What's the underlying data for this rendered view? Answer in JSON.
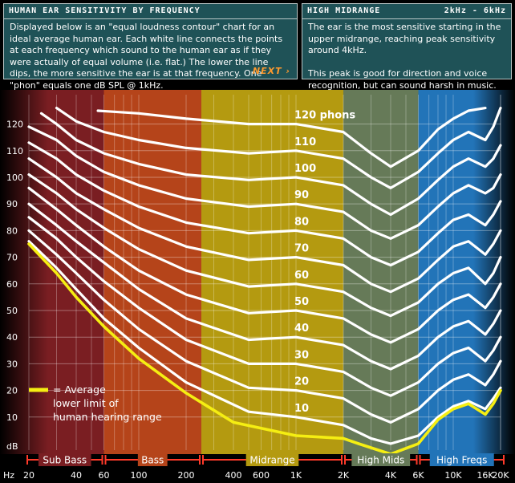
{
  "left_panel": {
    "title": "HUMAN EAR SENSITIVITY BY FREQUENCY",
    "body": "Displayed below is an \"equal loudness contour\" chart for an ideal average human ear. Each white line connects the points at each frequency which sound to the human ear as if they were actually of equal volume (i.e. flat.) The lower the line dips, the more sensitive the ear is at that frequency. One \"phon\" equals one dB SPL @ 1kHz.",
    "next_label": "NEXT ›"
  },
  "right_panel": {
    "title": "HIGH MIDRANGE",
    "range": "2kHz - 6kHz",
    "body": "The ear is the most sensitive starting in the upper midrange, reaching peak sensitivity around 4kHz.\n\nThis peak is good for direction and voice recognition, but can sound harsh in music."
  },
  "chart_data": {
    "type": "line",
    "xscale": "log",
    "xlim": [
      20,
      20000
    ],
    "ylim": [
      0,
      128
    ],
    "xlabel": "Hz",
    "ylabel": "dB",
    "yticks": [
      10,
      20,
      30,
      40,
      50,
      60,
      70,
      80,
      90,
      100,
      110,
      120
    ],
    "xticks": [
      {
        "v": 20,
        "label": "20"
      },
      {
        "v": 40,
        "label": "40"
      },
      {
        "v": 60,
        "label": "60"
      },
      {
        "v": 100,
        "label": "100"
      },
      {
        "v": 200,
        "label": "200"
      },
      {
        "v": 400,
        "label": "400"
      },
      {
        "v": 600,
        "label": "600"
      },
      {
        "v": 1000,
        "label": "1K"
      },
      {
        "v": 2000,
        "label": "2K"
      },
      {
        "v": 4000,
        "label": "4K"
      },
      {
        "v": 6000,
        "label": "6K"
      },
      {
        "v": 10000,
        "label": "10K"
      },
      {
        "v": 16000,
        "label": "16K"
      },
      {
        "v": 20000,
        "label": "20K"
      }
    ],
    "bands": [
      {
        "name": "Sub Bass",
        "from": 20,
        "to": 60,
        "color": "#7a1e22"
      },
      {
        "name": "Bass",
        "from": 60,
        "to": 250,
        "color": "#b5441a"
      },
      {
        "name": "Midrange",
        "from": 250,
        "to": 2000,
        "color": "#b49a10"
      },
      {
        "name": "High Mids",
        "from": 2000,
        "to": 6000,
        "color": "#667a58"
      },
      {
        "name": "High Freqs",
        "from": 6000,
        "to": 20000,
        "color": "#2274b8"
      }
    ],
    "series": [
      {
        "name": "120 phons",
        "points": [
          [
            55,
            125
          ],
          [
            100,
            124
          ],
          [
            200,
            122
          ],
          [
            500,
            120
          ],
          [
            1000,
            120
          ],
          [
            2000,
            117
          ],
          [
            3000,
            109
          ],
          [
            4000,
            104
          ],
          [
            6000,
            110
          ],
          [
            8000,
            118
          ],
          [
            10000,
            122
          ],
          [
            12500,
            125
          ],
          [
            16000,
            126
          ]
        ]
      },
      {
        "name": "110",
        "points": [
          [
            30,
            126
          ],
          [
            40,
            121
          ],
          [
            60,
            117
          ],
          [
            100,
            114
          ],
          [
            200,
            111
          ],
          [
            500,
            109
          ],
          [
            1000,
            110
          ],
          [
            2000,
            107
          ],
          [
            3000,
            100
          ],
          [
            4000,
            96
          ],
          [
            6000,
            102
          ],
          [
            8000,
            109
          ],
          [
            10000,
            114
          ],
          [
            12500,
            117
          ],
          [
            16000,
            114
          ],
          [
            18000,
            119
          ],
          [
            20000,
            126
          ]
        ]
      },
      {
        "name": "100",
        "points": [
          [
            24,
            124
          ],
          [
            30,
            120
          ],
          [
            40,
            114
          ],
          [
            60,
            109
          ],
          [
            100,
            105
          ],
          [
            200,
            101
          ],
          [
            500,
            99
          ],
          [
            1000,
            100
          ],
          [
            2000,
            97
          ],
          [
            3000,
            90
          ],
          [
            4000,
            86
          ],
          [
            6000,
            92
          ],
          [
            8000,
            99
          ],
          [
            10000,
            104
          ],
          [
            12500,
            107
          ],
          [
            16000,
            104
          ],
          [
            18000,
            107
          ],
          [
            20000,
            112
          ]
        ]
      },
      {
        "name": "90",
        "points": [
          [
            20,
            119
          ],
          [
            30,
            114
          ],
          [
            40,
            108
          ],
          [
            60,
            102
          ],
          [
            100,
            97
          ],
          [
            200,
            92
          ],
          [
            500,
            89
          ],
          [
            1000,
            90
          ],
          [
            2000,
            87
          ],
          [
            3000,
            80
          ],
          [
            4000,
            77
          ],
          [
            6000,
            82
          ],
          [
            8000,
            89
          ],
          [
            10000,
            94
          ],
          [
            12500,
            97
          ],
          [
            16000,
            94
          ],
          [
            18000,
            96
          ],
          [
            20000,
            101
          ]
        ]
      },
      {
        "name": "80",
        "points": [
          [
            20,
            113
          ],
          [
            30,
            107
          ],
          [
            40,
            101
          ],
          [
            60,
            95
          ],
          [
            100,
            89
          ],
          [
            200,
            83
          ],
          [
            500,
            79
          ],
          [
            1000,
            80
          ],
          [
            2000,
            77
          ],
          [
            3000,
            70
          ],
          [
            4000,
            67
          ],
          [
            6000,
            72
          ],
          [
            8000,
            79
          ],
          [
            10000,
            84
          ],
          [
            12500,
            86
          ],
          [
            16000,
            82
          ],
          [
            18000,
            86
          ],
          [
            20000,
            91
          ]
        ]
      },
      {
        "name": "70",
        "points": [
          [
            20,
            107
          ],
          [
            30,
            100
          ],
          [
            40,
            94
          ],
          [
            60,
            88
          ],
          [
            100,
            81
          ],
          [
            200,
            74
          ],
          [
            500,
            69
          ],
          [
            1000,
            70
          ],
          [
            2000,
            67
          ],
          [
            3000,
            60
          ],
          [
            4000,
            57
          ],
          [
            6000,
            62
          ],
          [
            8000,
            69
          ],
          [
            10000,
            74
          ],
          [
            12500,
            76
          ],
          [
            16000,
            71
          ],
          [
            18000,
            75
          ],
          [
            20000,
            80
          ]
        ]
      },
      {
        "name": "60",
        "points": [
          [
            20,
            101
          ],
          [
            30,
            94
          ],
          [
            40,
            88
          ],
          [
            60,
            81
          ],
          [
            100,
            73
          ],
          [
            200,
            65
          ],
          [
            500,
            59
          ],
          [
            1000,
            60
          ],
          [
            2000,
            57
          ],
          [
            3000,
            51
          ],
          [
            4000,
            48
          ],
          [
            6000,
            53
          ],
          [
            8000,
            60
          ],
          [
            10000,
            64
          ],
          [
            12500,
            66
          ],
          [
            16000,
            60
          ],
          [
            18000,
            64
          ],
          [
            20000,
            70
          ]
        ]
      },
      {
        "name": "50",
        "points": [
          [
            20,
            96
          ],
          [
            30,
            88
          ],
          [
            40,
            82
          ],
          [
            60,
            74
          ],
          [
            100,
            65
          ],
          [
            200,
            56
          ],
          [
            500,
            49
          ],
          [
            1000,
            50
          ],
          [
            2000,
            47
          ],
          [
            3000,
            41
          ],
          [
            4000,
            38
          ],
          [
            6000,
            43
          ],
          [
            8000,
            50
          ],
          [
            10000,
            54
          ],
          [
            12500,
            56
          ],
          [
            16000,
            51
          ],
          [
            18000,
            55
          ],
          [
            20000,
            60
          ]
        ]
      },
      {
        "name": "40",
        "points": [
          [
            20,
            90
          ],
          [
            30,
            82
          ],
          [
            40,
            76
          ],
          [
            60,
            68
          ],
          [
            100,
            58
          ],
          [
            200,
            47
          ],
          [
            500,
            39
          ],
          [
            1000,
            40
          ],
          [
            2000,
            37
          ],
          [
            3000,
            31
          ],
          [
            4000,
            28
          ],
          [
            6000,
            33
          ],
          [
            8000,
            40
          ],
          [
            10000,
            44
          ],
          [
            12500,
            46
          ],
          [
            16000,
            41
          ],
          [
            18000,
            45
          ],
          [
            20000,
            50
          ]
        ]
      },
      {
        "name": "30",
        "points": [
          [
            20,
            85
          ],
          [
            30,
            77
          ],
          [
            40,
            70
          ],
          [
            60,
            61
          ],
          [
            100,
            51
          ],
          [
            200,
            39
          ],
          [
            500,
            30
          ],
          [
            1000,
            30
          ],
          [
            2000,
            27
          ],
          [
            3000,
            21
          ],
          [
            4000,
            18
          ],
          [
            6000,
            23
          ],
          [
            8000,
            30
          ],
          [
            10000,
            34
          ],
          [
            12500,
            36
          ],
          [
            16000,
            31
          ],
          [
            18000,
            35
          ],
          [
            20000,
            40
          ]
        ]
      },
      {
        "name": "20",
        "points": [
          [
            20,
            80
          ],
          [
            30,
            71
          ],
          [
            40,
            64
          ],
          [
            60,
            54
          ],
          [
            100,
            43
          ],
          [
            200,
            31
          ],
          [
            500,
            21
          ],
          [
            1000,
            20
          ],
          [
            2000,
            17
          ],
          [
            3000,
            11
          ],
          [
            4000,
            8
          ],
          [
            6000,
            13
          ],
          [
            8000,
            20
          ],
          [
            10000,
            24
          ],
          [
            12500,
            26
          ],
          [
            16000,
            22
          ],
          [
            18000,
            26
          ],
          [
            20000,
            31
          ]
        ]
      },
      {
        "name": "10",
        "points": [
          [
            20,
            76
          ],
          [
            30,
            66
          ],
          [
            40,
            58
          ],
          [
            60,
            47
          ],
          [
            100,
            36
          ],
          [
            200,
            23
          ],
          [
            500,
            12
          ],
          [
            1000,
            10
          ],
          [
            2000,
            7
          ],
          [
            3000,
            2
          ],
          [
            4000,
            0
          ],
          [
            6000,
            3
          ],
          [
            8000,
            10
          ],
          [
            10000,
            14
          ],
          [
            12500,
            16
          ],
          [
            16000,
            13
          ],
          [
            18000,
            17
          ],
          [
            20000,
            21
          ]
        ]
      }
    ],
    "threshold": {
      "name": "= Average\nlower limit of\nhuman hearing range",
      "color": "#f5ee12",
      "points": [
        [
          20,
          75
        ],
        [
          30,
          64
        ],
        [
          40,
          55
        ],
        [
          60,
          44
        ],
        [
          100,
          32
        ],
        [
          200,
          19
        ],
        [
          400,
          8
        ],
        [
          1000,
          3
        ],
        [
          2000,
          2
        ],
        [
          2500,
          0
        ],
        [
          4000,
          -5
        ],
        [
          6000,
          0
        ],
        [
          8000,
          9
        ],
        [
          10000,
          13
        ],
        [
          12500,
          15
        ],
        [
          16000,
          11
        ],
        [
          18000,
          15
        ],
        [
          20000,
          20
        ]
      ]
    }
  }
}
